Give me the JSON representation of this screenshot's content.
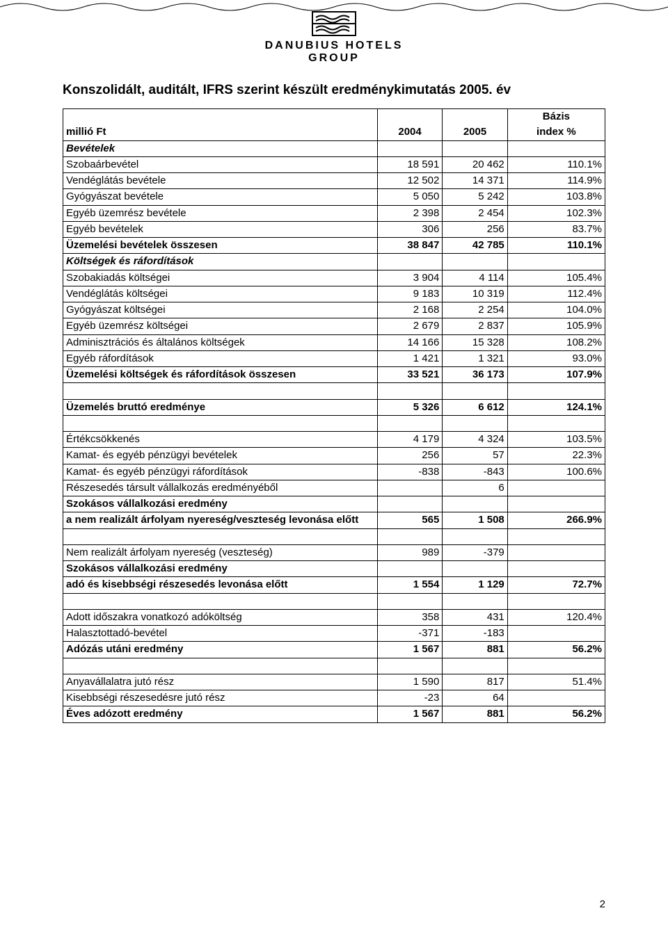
{
  "logo": {
    "line1": "DANUBIUS HOTELS",
    "line2": "GROUP"
  },
  "title": "Konszolidált, auditált, IFRS szerint készült eredménykimutatás 2005. év",
  "headers": {
    "label": "millió Ft",
    "c1": "2004",
    "c2": "2005",
    "c3a": "Bázis",
    "c3b": "index %"
  },
  "rows": [
    {
      "type": "section",
      "label": "Bevételek"
    },
    {
      "type": "data",
      "label": "Szobaárbevétel",
      "v1": "18 591",
      "v2": "20 462",
      "idx": "110.1%"
    },
    {
      "type": "data",
      "label": "Vendéglátás bevétele",
      "v1": "12 502",
      "v2": "14 371",
      "idx": "114.9%"
    },
    {
      "type": "data",
      "label": "Gyógyászat bevétele",
      "v1": "5 050",
      "v2": "5 242",
      "idx": "103.8%"
    },
    {
      "type": "data",
      "label": "Egyéb üzemrész bevétele",
      "v1": "2 398",
      "v2": "2 454",
      "idx": "102.3%"
    },
    {
      "type": "data",
      "label": "Egyéb bevételek",
      "v1": "306",
      "v2": "256",
      "idx": "83.7%"
    },
    {
      "type": "bold",
      "label": "Üzemelési bevételek összesen",
      "v1": "38 847",
      "v2": "42 785",
      "idx": "110.1%"
    },
    {
      "type": "section",
      "label": "Költségek és ráfordítások"
    },
    {
      "type": "data",
      "label": "Szobakiadás költségei",
      "v1": "3 904",
      "v2": "4 114",
      "idx": "105.4%"
    },
    {
      "type": "data",
      "label": "Vendéglátás költségei",
      "v1": "9 183",
      "v2": "10 319",
      "idx": "112.4%"
    },
    {
      "type": "data",
      "label": "Gyógyászat költségei",
      "v1": "2 168",
      "v2": "2 254",
      "idx": "104.0%"
    },
    {
      "type": "data",
      "label": "Egyéb üzemrész költségei",
      "v1": "2 679",
      "v2": "2 837",
      "idx": "105.9%"
    },
    {
      "type": "data",
      "label": "Adminisztrációs és általános költségek",
      "v1": "14 166",
      "v2": "15 328",
      "idx": "108.2%"
    },
    {
      "type": "data",
      "label": "Egyéb ráfordítások",
      "v1": "1 421",
      "v2": "1 321",
      "idx": "93.0%"
    },
    {
      "type": "bold",
      "label": "Üzemelési költségek és ráfordítások összesen",
      "v1": "33 521",
      "v2": "36 173",
      "idx": "107.9%"
    },
    {
      "type": "spacer"
    },
    {
      "type": "bold",
      "label": "Üzemelés bruttó eredménye",
      "v1": "5 326",
      "v2": "6 612",
      "idx": "124.1%"
    },
    {
      "type": "spacer"
    },
    {
      "type": "data",
      "label": "Értékcsökkenés",
      "v1": "4 179",
      "v2": "4 324",
      "idx": "103.5%"
    },
    {
      "type": "data",
      "label": "Kamat- és egyéb pénzügyi bevételek",
      "v1": "256",
      "v2": "57",
      "idx": "22.3%"
    },
    {
      "type": "data",
      "label": "Kamat- és egyéb pénzügyi ráfordítások",
      "v1": "-838",
      "v2": "-843",
      "idx": "100.6%"
    },
    {
      "type": "data",
      "label": "Részesedés társult vállalkozás eredményéből",
      "v1": "",
      "v2": "6",
      "idx": ""
    },
    {
      "type": "boldlabel",
      "label": "Szokásos vállalkozási eredmény"
    },
    {
      "type": "bold",
      "label": "a nem realizált árfolyam nyereség/veszteség levonása előtt",
      "v1": "565",
      "v2": "1 508",
      "idx": "266.9%"
    },
    {
      "type": "spacer"
    },
    {
      "type": "data",
      "label": "Nem realizált árfolyam nyereség (veszteség)",
      "v1": "989",
      "v2": "-379",
      "idx": ""
    },
    {
      "type": "boldlabel",
      "label": "Szokásos vállalkozási eredmény"
    },
    {
      "type": "bold",
      "label": "adó és kisebbségi részesedés levonása előtt",
      "v1": "1 554",
      "v2": "1 129",
      "idx": "72.7%"
    },
    {
      "type": "spacer"
    },
    {
      "type": "data",
      "label": "Adott időszakra vonatkozó adóköltség",
      "v1": "358",
      "v2": "431",
      "idx": "120.4%"
    },
    {
      "type": "data",
      "label": "Halasztottadó-bevétel",
      "v1": "-371",
      "v2": "-183",
      "idx": ""
    },
    {
      "type": "bold",
      "label": "Adózás utáni eredmény",
      "v1": "1 567",
      "v2": "881",
      "idx": "56.2%"
    },
    {
      "type": "spacer"
    },
    {
      "type": "data",
      "label": "Anyavállalatra jutó rész",
      "v1": "1 590",
      "v2": "817",
      "idx": "51.4%"
    },
    {
      "type": "data",
      "label": "Kisebbségi részesedésre jutó rész",
      "v1": "-23",
      "v2": "64",
      "idx": ""
    },
    {
      "type": "bold",
      "label": "Éves adózott eredmény",
      "v1": "1 567",
      "v2": "881",
      "idx": "56.2%"
    }
  ],
  "pagenum": "2"
}
